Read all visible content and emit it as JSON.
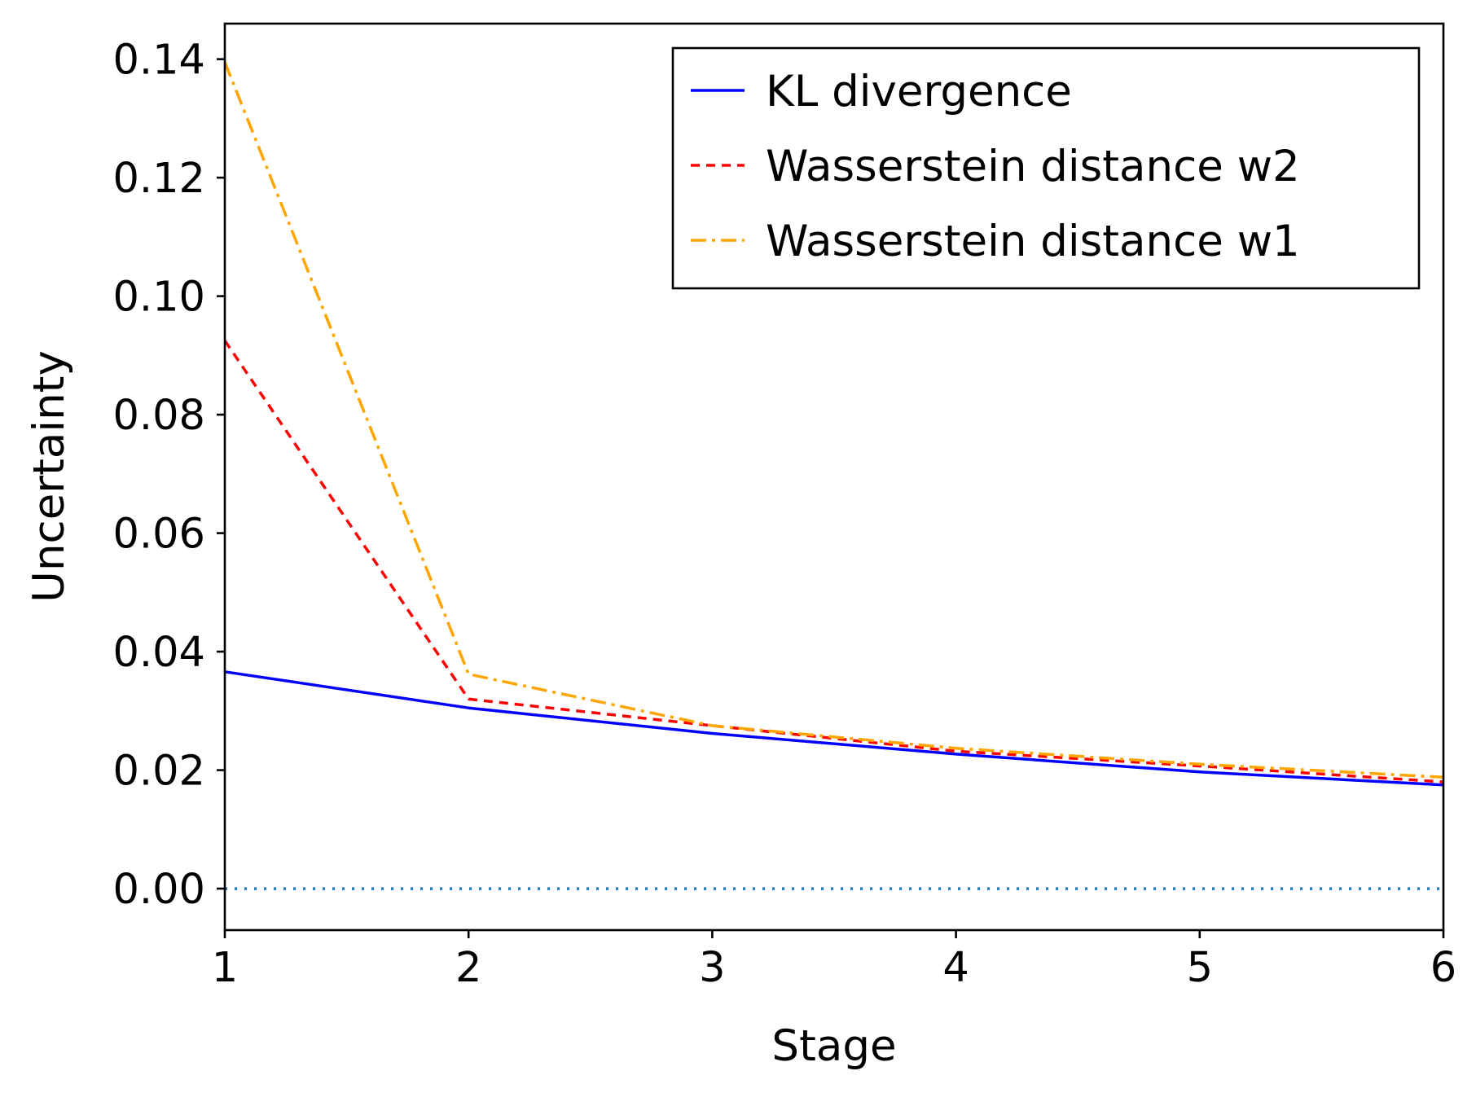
{
  "chart_data": {
    "type": "line",
    "title": "",
    "xlabel": "Stage",
    "ylabel": "Uncertainty",
    "x": [
      1,
      2,
      3,
      4,
      5,
      6
    ],
    "xlim": [
      1,
      6
    ],
    "ylim": [
      -0.007,
      0.146
    ],
    "xticks": [
      1,
      2,
      3,
      4,
      5,
      6
    ],
    "xtick_labels": [
      "1",
      "2",
      "3",
      "4",
      "5",
      "6"
    ],
    "yticks": [
      0.0,
      0.02,
      0.04,
      0.06,
      0.08,
      0.1,
      0.12,
      0.14
    ],
    "ytick_labels": [
      "0.00",
      "0.02",
      "0.04",
      "0.06",
      "0.08",
      "0.10",
      "0.12",
      "0.14"
    ],
    "grid": false,
    "legend_position": "top-right",
    "series": [
      {
        "name": "KL divergence",
        "values": [
          0.0366,
          0.0305,
          0.0262,
          0.0227,
          0.0197,
          0.0175
        ],
        "color": "#0000ff",
        "line_style": "solid"
      },
      {
        "name": "Wasserstein distance w2",
        "values": [
          0.0925,
          0.032,
          0.0275,
          0.0232,
          0.0207,
          0.018
        ],
        "color": "#ff0000",
        "line_style": "dashed"
      },
      {
        "name": "Wasserstein distance w1",
        "values": [
          0.1395,
          0.0362,
          0.0275,
          0.0237,
          0.021,
          0.0188
        ],
        "color": "#ffa500",
        "line_style": "dashdot"
      }
    ],
    "reference_lines": [
      {
        "orientation": "horizontal",
        "value": 0.0,
        "color": "#1f77b4",
        "line_style": "dotted"
      }
    ]
  }
}
